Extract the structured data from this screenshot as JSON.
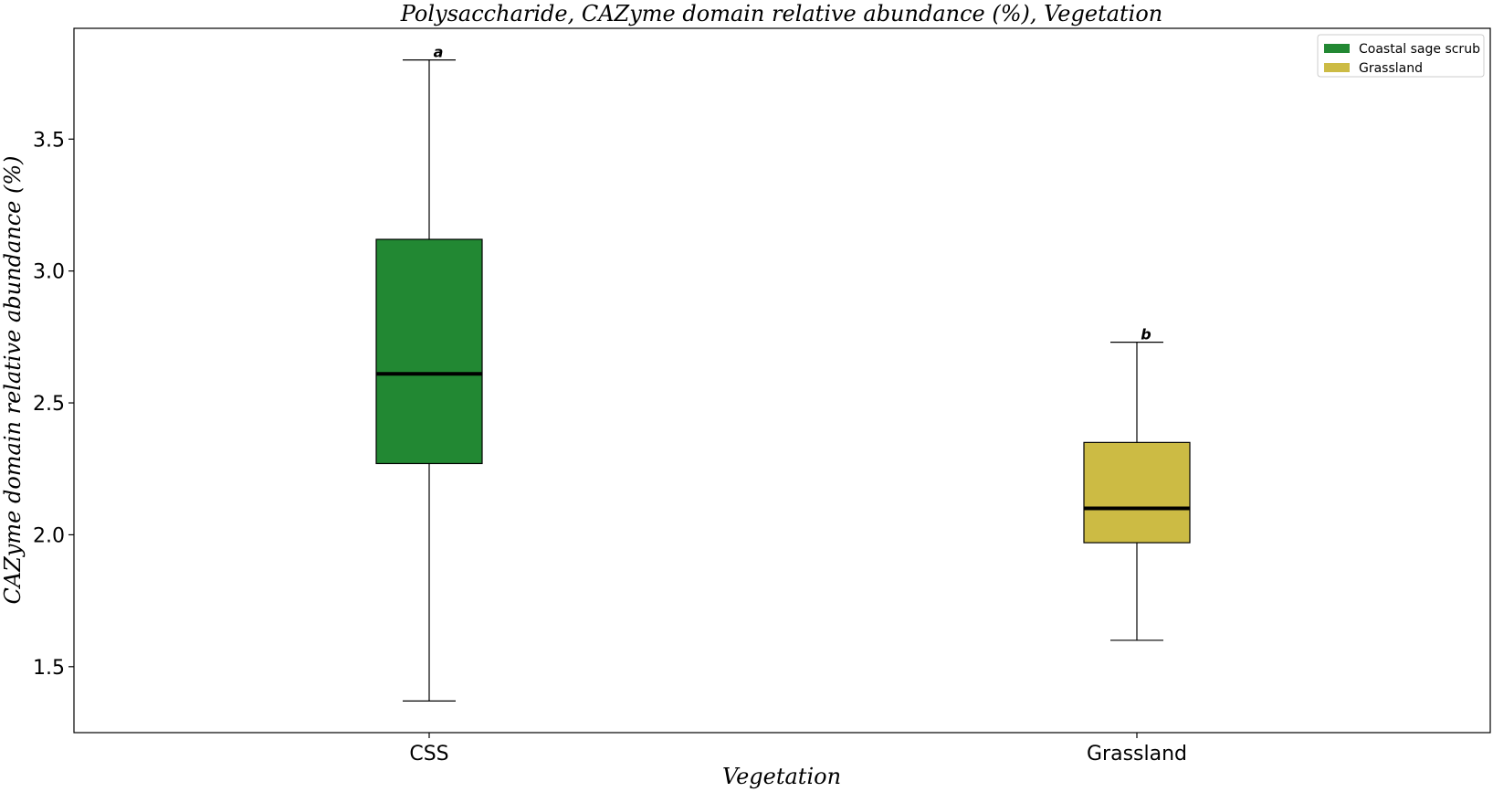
{
  "chart_data": {
    "type": "box",
    "title": "Polysaccharide, CAZyme domain relative abundance (%), Vegetation",
    "xlabel": "Vegetation",
    "ylabel": "CAZyme domain relative abundance (%)",
    "ylim": [
      1.25,
      3.92
    ],
    "yticks": [
      "1.5",
      "2.0",
      "2.5",
      "3.0",
      "3.5"
    ],
    "ytick_values": [
      1.5,
      2.0,
      2.5,
      3.0,
      3.5
    ],
    "categories": [
      "CSS",
      "Grassland"
    ],
    "boxes": [
      {
        "category": "CSS",
        "whisker_low": 1.37,
        "q1": 2.27,
        "median": 2.61,
        "q3": 3.12,
        "whisker_high": 3.8,
        "color": "#228833",
        "sig_label": "a"
      },
      {
        "category": "Grassland",
        "whisker_low": 1.6,
        "q1": 1.97,
        "median": 2.1,
        "q3": 2.35,
        "whisker_high": 2.73,
        "color": "#CCBB44",
        "sig_label": "b"
      }
    ],
    "legend": {
      "position": "top-right",
      "entries": [
        {
          "label": "Coastal sage scrub",
          "color": "#228833"
        },
        {
          "label": "Grassland",
          "color": "#CCBB44"
        }
      ]
    }
  }
}
